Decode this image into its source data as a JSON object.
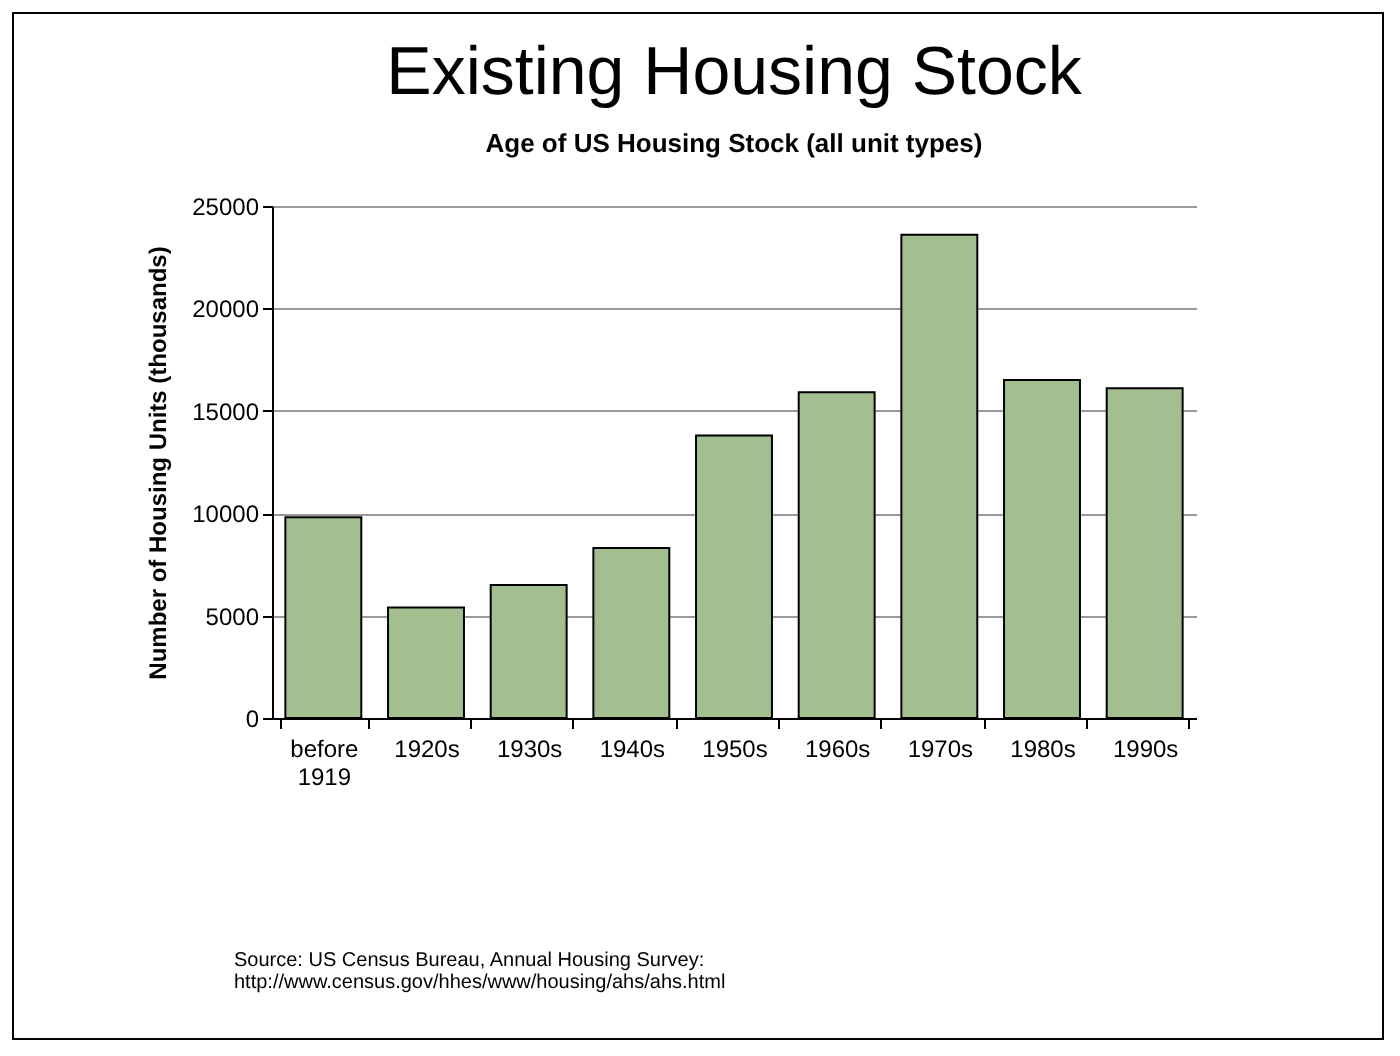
{
  "chart_data": {
    "type": "bar",
    "title": "Existing Housing Stock",
    "subtitle": "Age of US Housing Stock (all unit types)",
    "ylabel": "Number of Housing Units (thousands)",
    "categories": [
      "before 1919",
      "1920s",
      "1930s",
      "1940s",
      "1950s",
      "1960s",
      "1970s",
      "1980s",
      "1990s"
    ],
    "values": [
      9800,
      5400,
      6500,
      8300,
      13800,
      15900,
      23600,
      16500,
      16100
    ],
    "color": "#a3be8f",
    "ylim": [
      0,
      25000
    ],
    "yticks": [
      0,
      5000,
      10000,
      15000,
      20000,
      25000
    ],
    "grid": "y",
    "annotations": [
      "Source: US Census Bureau, Annual Housing Survey: http://www.census.gov/hhes/www/housing/ahs/ahs.html"
    ]
  }
}
